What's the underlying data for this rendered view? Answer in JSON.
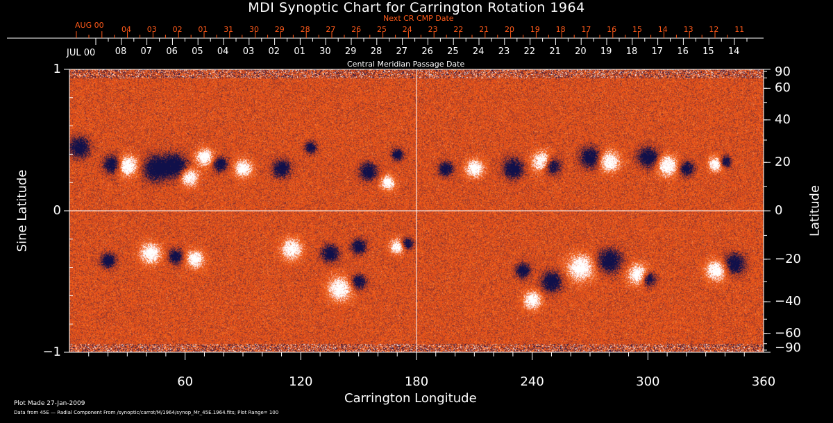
{
  "chart_data": {
    "type": "heatmap",
    "title": "MDI Synoptic Chart for Carrington Rotation 1964",
    "xlabel": "Carrington Longitude",
    "ylabel_left": "Sine Latitude",
    "ylabel_right": "Latitude",
    "xlim": [
      0,
      360
    ],
    "ylim": [
      -1,
      1
    ],
    "x_ticks": [
      "60",
      "120",
      "180",
      "240",
      "300",
      "360"
    ],
    "y_ticks_left": [
      "1",
      "0",
      "−1"
    ],
    "y_ticks_right": [
      "90",
      "60",
      "40",
      "20",
      "0",
      "−20",
      "−40",
      "−60",
      "−90"
    ],
    "y_ticks_right_values": [
      90,
      60,
      40,
      20,
      0,
      -20,
      -40,
      -60,
      -90
    ],
    "top_axis": {
      "label": "Central Meridian Passage Date",
      "month_label": "JUL 00",
      "dates": [
        "08",
        "07",
        "06",
        "05",
        "04",
        "03",
        "02",
        "01",
        "30",
        "29",
        "28",
        "27",
        "26",
        "25",
        "24",
        "23",
        "22",
        "21",
        "20",
        "19",
        "18",
        "17",
        "16",
        "15",
        "14"
      ]
    },
    "next_axis": {
      "label": "Next CR CMP Date",
      "month_label": "AUG 00",
      "dates": [
        "04",
        "03",
        "02",
        "01",
        "31",
        "30",
        "29",
        "28",
        "27",
        "26",
        "25",
        "24",
        "23",
        "22",
        "21",
        "20",
        "19",
        "18",
        "17",
        "16",
        "15",
        "14",
        "13",
        "12",
        "11"
      ]
    },
    "colorscale": {
      "negative": "#10104a",
      "zero": "#e8501a",
      "positive": "#ffffff"
    },
    "plot_range": 100
  },
  "footer": {
    "plot_made": "Plot Made 27-Jan-2009",
    "source": "Data from 45E — Radial Component From /synoptic/carrot/M/1964/synop_Mr_45E.1964.fits; Plot Range=  100"
  }
}
